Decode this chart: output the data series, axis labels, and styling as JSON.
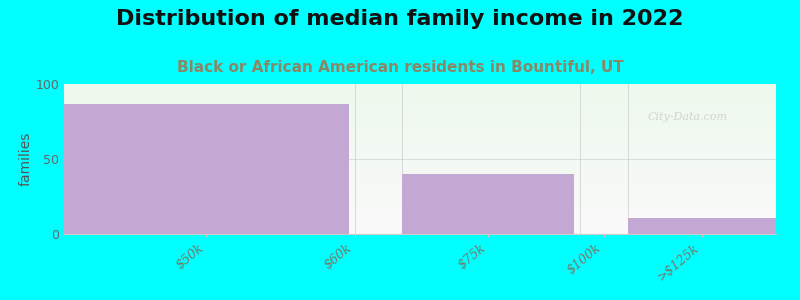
{
  "title": "Distribution of median family income in 2022",
  "subtitle": "Black or African American residents in Bountiful, UT",
  "ylabel": "families",
  "background_color": "#00FFFF",
  "bar_color": "#c4a8d4",
  "bar_edge_color": "#b090c0",
  "categories": [
    "$50k",
    "$60k",
    "$75k",
    "$100k",
    ">$125k"
  ],
  "values": [
    87,
    0,
    40,
    0,
    11
  ],
  "bar_left_edges": [
    0.0,
    2.45,
    2.85,
    4.35,
    4.75
  ],
  "bar_rights": [
    2.4,
    2.45,
    4.3,
    4.75,
    6.0
  ],
  "tick_positions": [
    1.2,
    2.45,
    3.575,
    4.55,
    5.375
  ],
  "xlim": [
    0.0,
    6.0
  ],
  "ylim": [
    0,
    100
  ],
  "yticks": [
    0,
    50,
    100
  ],
  "grid_y": 50,
  "grid_color": "#dddddd",
  "watermark": "City-Data.com",
  "title_fontsize": 16,
  "subtitle_fontsize": 11,
  "ylabel_fontsize": 10,
  "tick_fontsize": 9,
  "subtitle_color": "#888866",
  "ytick_color": "#666666",
  "xtick_color": "#777766"
}
